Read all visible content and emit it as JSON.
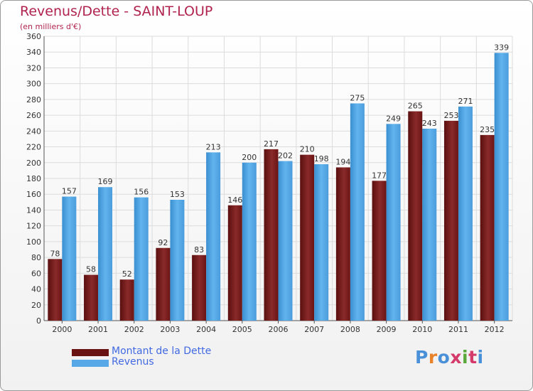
{
  "header": {
    "title": "Revenus/Dette - SAINT-LOUP",
    "subtitle": "(en milliers d'€)"
  },
  "legend": {
    "debt_label": "Montant de la Dette",
    "revenue_label": "Revenus"
  },
  "logo": {
    "text": "Proxiti",
    "letter_colors": [
      "#4a90d9",
      "#e8832a",
      "#4a90d9",
      "#d43a6a",
      "#5aa83a",
      "#d43a6a",
      "#4a90d9"
    ]
  },
  "colors": {
    "debt": "#7a1f1f",
    "revenue": "#56a8e6",
    "legend_text": "#4169e1",
    "title": "#b0234f"
  },
  "chart_data": {
    "type": "bar",
    "title": "Revenus/Dette - SAINT-LOUP",
    "subtitle": "(en milliers d'€)",
    "categories": [
      "2000",
      "2001",
      "2002",
      "2003",
      "2004",
      "2005",
      "2006",
      "2007",
      "2008",
      "2009",
      "2010",
      "2011",
      "2012"
    ],
    "series": [
      {
        "name": "Montant de la Dette",
        "values": [
          78,
          58,
          52,
          92,
          83,
          146,
          217,
          210,
          194,
          177,
          265,
          253,
          235
        ]
      },
      {
        "name": "Revenus",
        "values": [
          157,
          169,
          156,
          153,
          213,
          200,
          202,
          198,
          275,
          249,
          243,
          271,
          339
        ]
      }
    ],
    "data_labels": [
      [
        "78",
        "58",
        "52",
        "92",
        "83",
        "146",
        "217",
        "210",
        "194",
        "177",
        "265",
        "253",
        "235"
      ],
      [
        "157",
        "169",
        "156",
        "153",
        "213",
        "200",
        "202",
        "198",
        "275",
        "249",
        "243",
        "271",
        "339"
      ]
    ],
    "ylim": [
      0,
      360
    ],
    "yticks": [
      "0",
      "20",
      "40",
      "60",
      "80",
      "100",
      "120",
      "140",
      "160",
      "180",
      "200",
      "220",
      "240",
      "260",
      "280",
      "300",
      "320",
      "340",
      "360"
    ],
    "grid": true,
    "legend_position": "bottom-left"
  }
}
